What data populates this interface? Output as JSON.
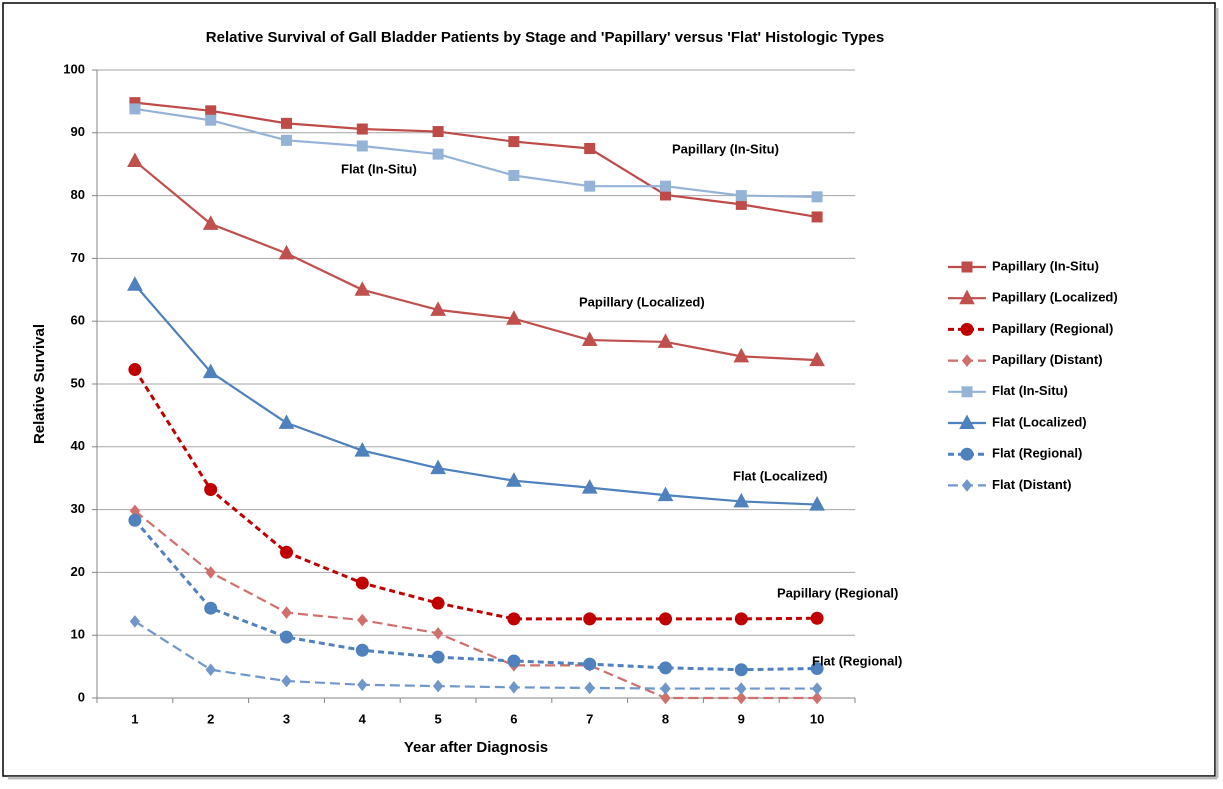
{
  "chart_data": {
    "type": "line",
    "title": "Relative Survival of Gall Bladder Patients by Stage and 'Papillary' versus 'Flat' Histologic Types",
    "x_label": "Year after Diagnosis",
    "y_label": "Relative Survival",
    "categories": [
      "1",
      "2",
      "3",
      "4",
      "5",
      "6",
      "7",
      "8",
      "9",
      "10"
    ],
    "ylim": [
      0,
      100
    ],
    "yticks": [
      0,
      10,
      20,
      30,
      40,
      50,
      60,
      70,
      80,
      90,
      100
    ],
    "grid": true,
    "legend": "right",
    "series": [
      {
        "name": "Papillary (In-Situ)",
        "color": "#be4b48",
        "marker": "square",
        "dashed": false,
        "values": [
          94.8,
          93.5,
          91.5,
          90.6,
          90.2,
          88.6,
          87.5,
          80.1,
          78.6,
          76.6
        ]
      },
      {
        "name": "Papillary (Localized)",
        "color": "#c0504d",
        "marker": "triangle",
        "dashed": false,
        "values": [
          85.5,
          75.5,
          70.8,
          65.0,
          61.8,
          60.4,
          57.0,
          56.7,
          54.4,
          53.8
        ]
      },
      {
        "name": "Papillary (Regional)",
        "color": "#c00000",
        "marker": "circle",
        "dashed": true,
        "values": [
          52.3,
          33.2,
          23.2,
          18.3,
          15.1,
          12.6,
          12.6,
          12.6,
          12.6,
          12.7
        ]
      },
      {
        "name": "Papillary (Distant)",
        "color": "#d0706d",
        "marker": "diamond",
        "dashed": true,
        "values": [
          29.8,
          20.0,
          13.6,
          12.4,
          10.3,
          5.2,
          5.2,
          0,
          0,
          0
        ]
      },
      {
        "name": "Flat (In-Situ)",
        "color": "#95b3d7",
        "marker": "square",
        "dashed": false,
        "values": [
          93.8,
          92.0,
          88.8,
          87.9,
          86.6,
          83.2,
          81.5,
          81.5,
          80.0,
          79.8
        ]
      },
      {
        "name": "Flat (Localized)",
        "color": "#4f81bd",
        "marker": "triangle",
        "dashed": false,
        "values": [
          65.8,
          51.9,
          43.8,
          39.4,
          36.6,
          34.6,
          33.5,
          32.3,
          31.3,
          30.8
        ]
      },
      {
        "name": "Flat (Regional)",
        "color": "#4f81bd",
        "marker": "circle",
        "dashed": true,
        "values": [
          28.3,
          14.3,
          9.7,
          7.6,
          6.5,
          5.9,
          5.4,
          4.8,
          4.5,
          4.7
        ]
      },
      {
        "name": "Flat (Distant)",
        "color": "#6f97c9",
        "marker": "diamond",
        "dashed": true,
        "values": [
          12.2,
          4.5,
          2.7,
          2.1,
          1.9,
          1.7,
          1.6,
          1.5,
          1.5,
          1.5
        ]
      }
    ],
    "annotations": [
      "Papillary (In-Situ)",
      "Flat (In-Situ)",
      "Papillary (Localized)",
      "Flat (Localized)",
      "Papillary (Regional)",
      "Flat (Regional)"
    ]
  }
}
